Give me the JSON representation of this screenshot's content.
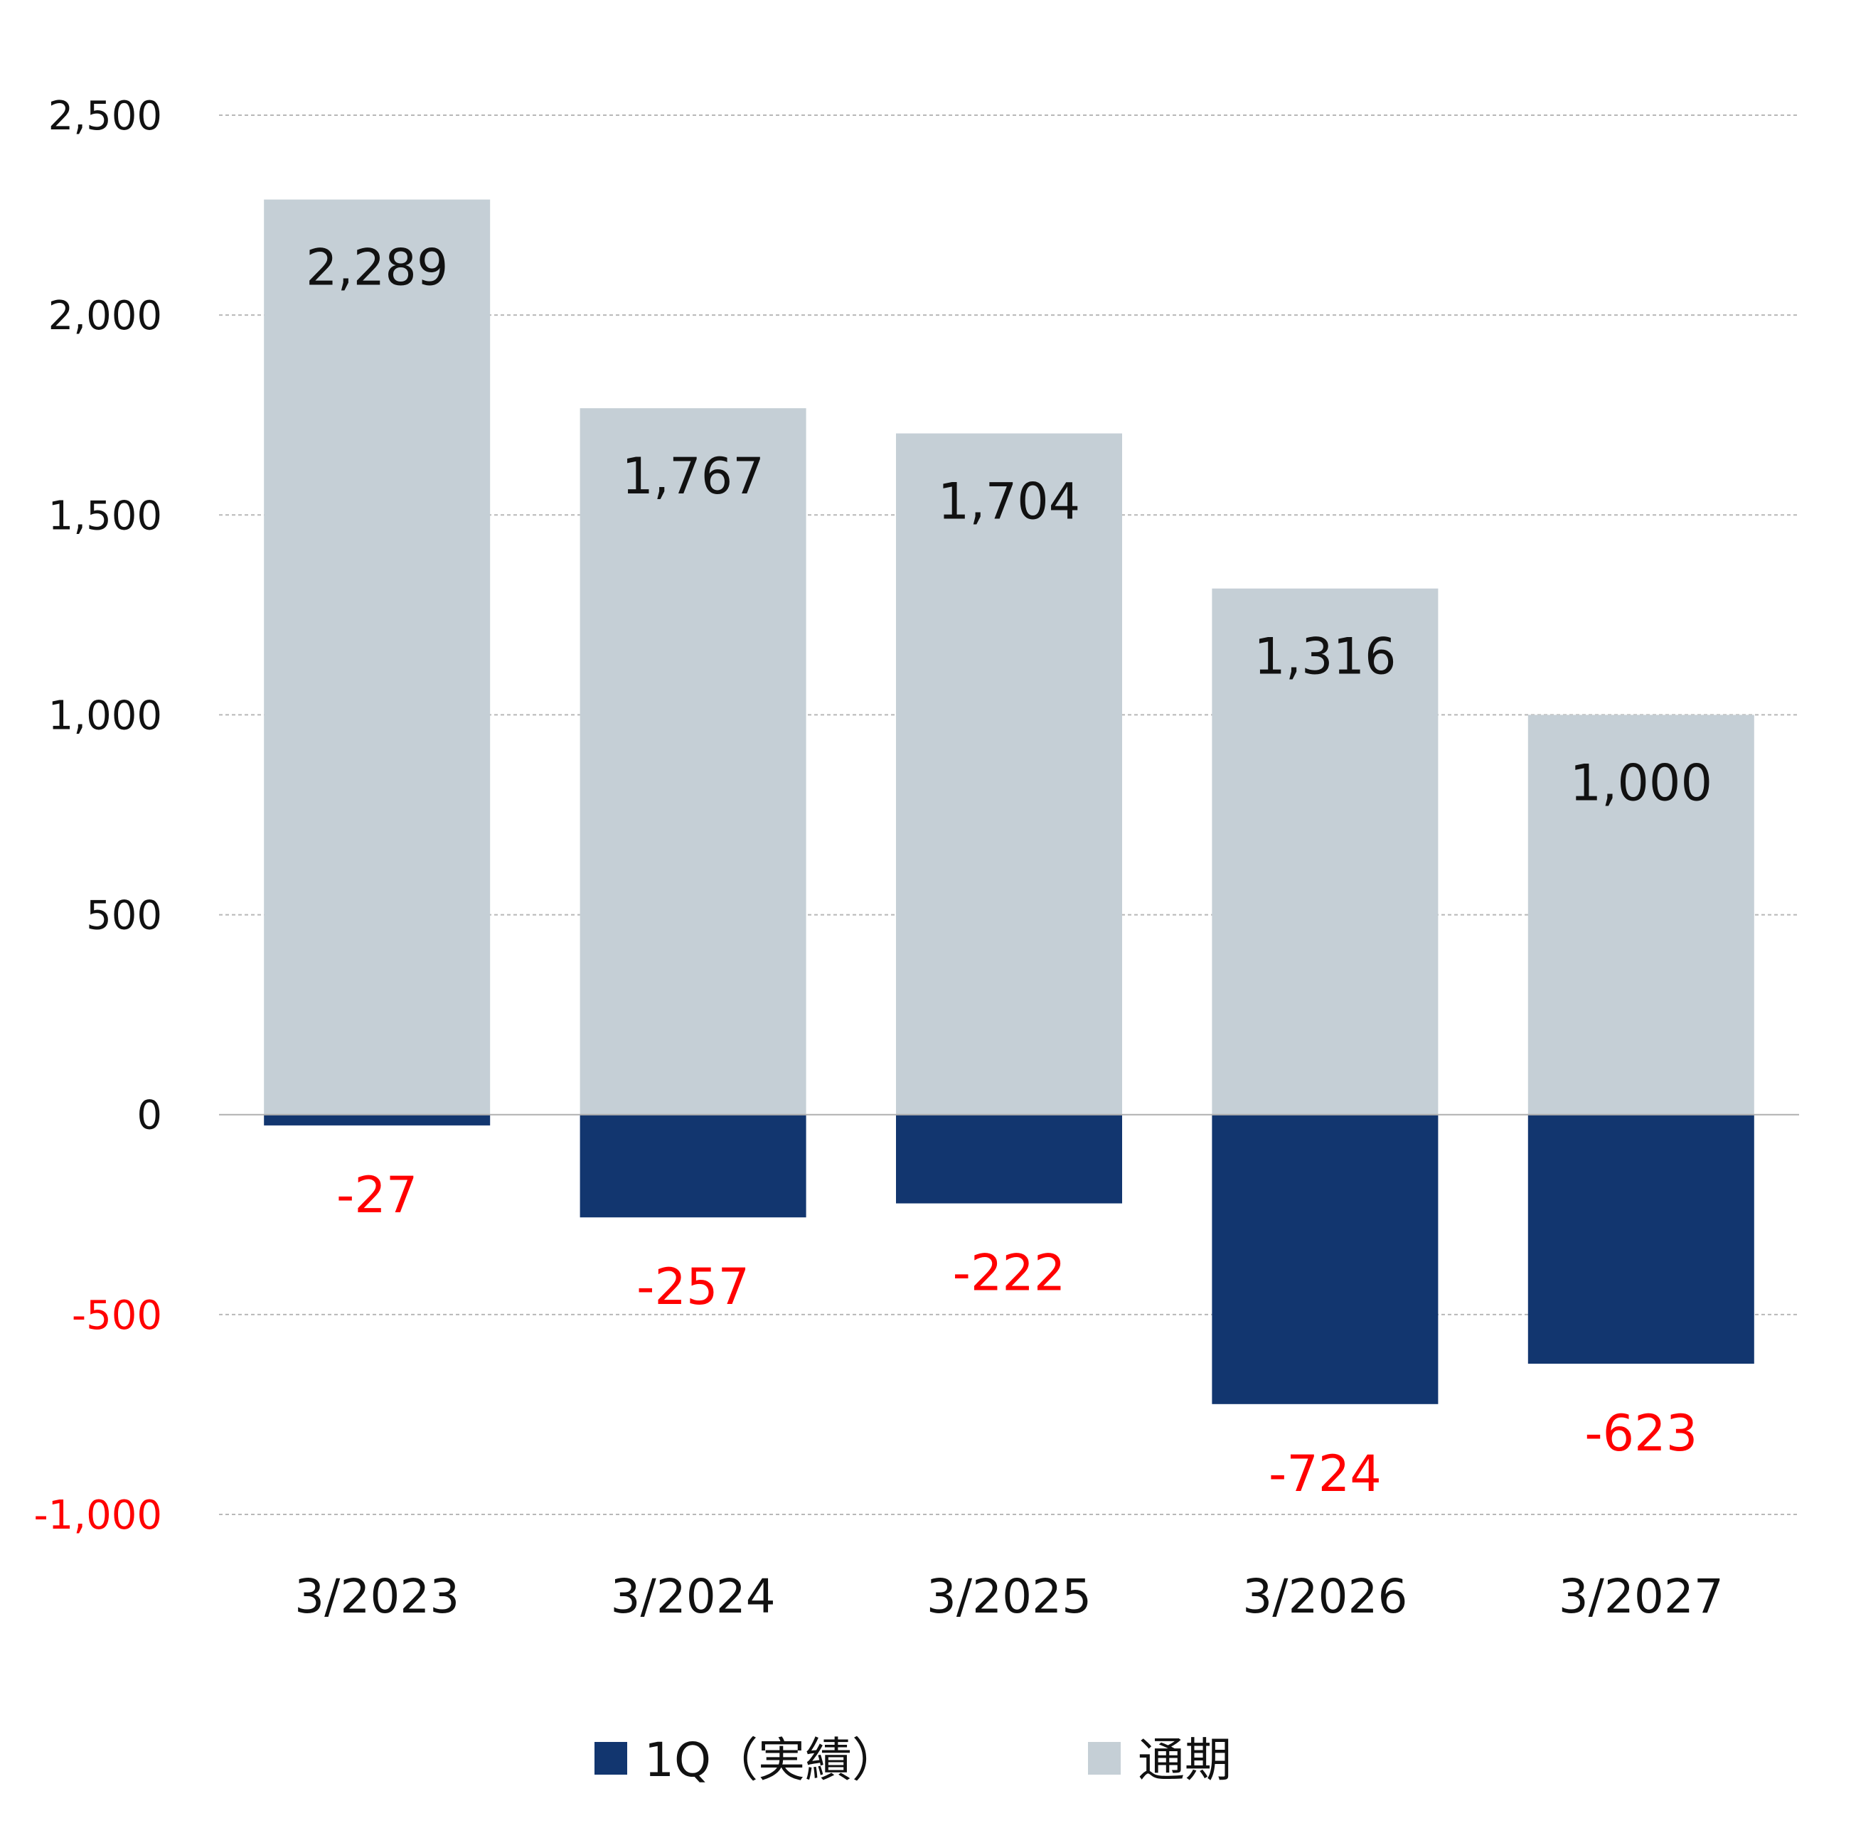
{
  "chart_data": {
    "type": "bar",
    "categories": [
      "3/2023",
      "3/2024",
      "3/2025",
      "3/2026",
      "3/2027"
    ],
    "series": [
      {
        "name": "1Q（実績）",
        "values": [
          -27,
          -257,
          -222,
          -724,
          -623
        ],
        "color": "#12366f",
        "label_color": "#ff0000"
      },
      {
        "name": "通期",
        "values": [
          2289,
          1767,
          1704,
          1316,
          1000
        ],
        "color": "#c5cfd6",
        "label_color": "#111111"
      }
    ],
    "data_labels": {
      "1Q（実績）": [
        "-27",
        "-257",
        "-222",
        "-724",
        "-623"
      ],
      "通期": [
        "2,289",
        "1,767",
        "1,704",
        "1,316",
        "1,000"
      ]
    },
    "y_ticks": [
      2500,
      2000,
      1500,
      1000,
      500,
      0,
      -500,
      -1000
    ],
    "y_tick_labels": [
      "2,500",
      "2,000",
      "1,500",
      "1,000",
      "500",
      "0",
      "-500",
      "-1,000"
    ],
    "negative_tick_color": "#ff0000",
    "positive_tick_color": "#111111",
    "ylim": [
      -1000,
      2500
    ],
    "grid": true,
    "gridline_style": "dashed",
    "legend_position": "bottom-center",
    "title": "",
    "xlabel": "",
    "ylabel": ""
  }
}
